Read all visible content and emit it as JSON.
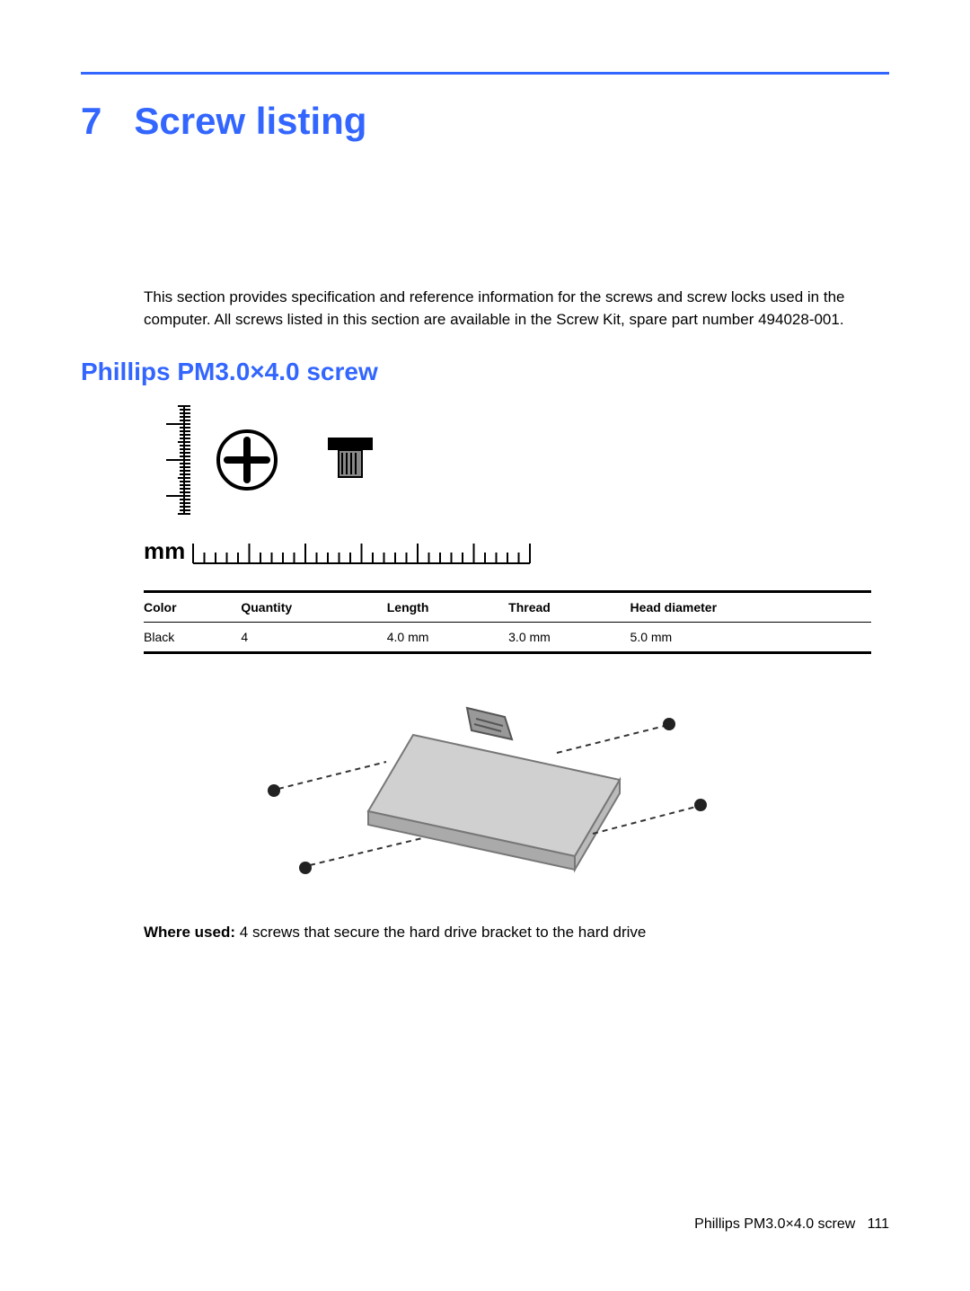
{
  "colors": {
    "accent": "#3366ff",
    "text": "#000000",
    "background": "#ffffff",
    "rule": "#000000"
  },
  "chapter": {
    "number": "7",
    "title": "Screw listing"
  },
  "intro": "This section provides specification and reference information for the screws and screw locks used in the computer. All screws listed in this section are available in the Screw Kit, spare part number 494028-001.",
  "section_heading": "Phillips PM3.0×4.0 screw",
  "ruler_label": "mm",
  "table": {
    "columns": [
      "Color",
      "Quantity",
      "Length",
      "Thread",
      "Head diameter"
    ],
    "rows": [
      [
        "Black",
        "4",
        "4.0 mm",
        "3.0 mm",
        "5.0 mm"
      ]
    ]
  },
  "where_used": {
    "label": "Where used:",
    "text": "4 screws that secure the hard drive bracket to the hard drive"
  },
  "footer": {
    "section": "Phillips PM3.0×4.0 screw",
    "page": "111"
  }
}
